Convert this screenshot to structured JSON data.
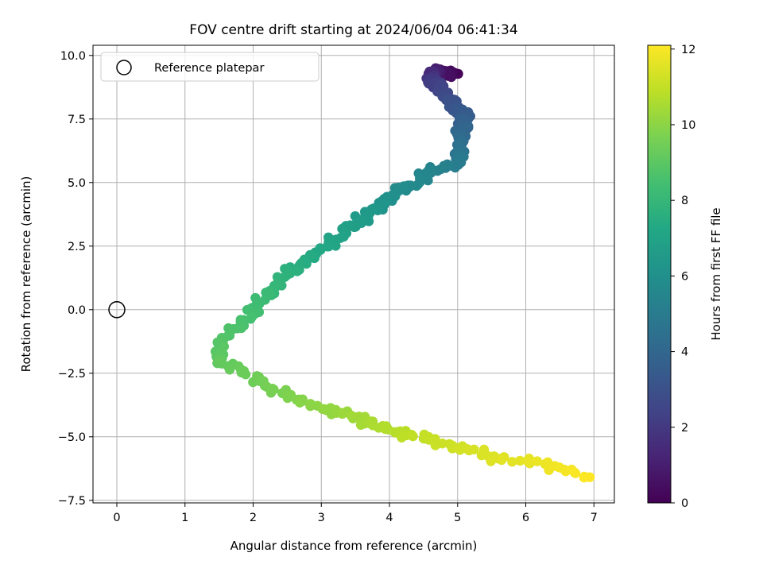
{
  "chart_data": {
    "type": "scatter",
    "title": "FOV centre drift starting at 2024/06/04 06:41:34",
    "xlabel": "Angular distance from reference (arcmin)",
    "ylabel": "Rotation from reference (arcmin)",
    "xlim": [
      -0.35,
      7.3
    ],
    "ylim": [
      -7.6,
      10.4
    ],
    "xticks": [
      0,
      1,
      2,
      3,
      4,
      5,
      6,
      7
    ],
    "xtick_labels": [
      "0",
      "1",
      "2",
      "3",
      "4",
      "5",
      "6",
      "7"
    ],
    "yticks": [
      -7.5,
      -5.0,
      -2.5,
      0.0,
      2.5,
      5.0,
      7.5,
      10.0
    ],
    "ytick_labels": [
      "−7.5",
      "−5.0",
      "−2.5",
      "0.0",
      "2.5",
      "5.0",
      "7.5",
      "10.0"
    ],
    "grid": true,
    "legend": {
      "position": "top-left",
      "entries": [
        "Reference platepar"
      ]
    },
    "reference_point": {
      "x": 0,
      "y": 0
    },
    "colorbar": {
      "label": "Hours from first FF file",
      "range": [
        0,
        12.1
      ],
      "ticks": [
        0,
        2,
        4,
        6,
        8,
        10,
        12
      ],
      "tick_labels": [
        "0",
        "2",
        "4",
        "6",
        "8",
        "10",
        "12"
      ],
      "colormap": "viridis"
    },
    "path_waypoints": [
      {
        "t": 0.0,
        "x": 4.95,
        "y": 9.25
      },
      {
        "t": 1.0,
        "x": 4.65,
        "y": 9.4
      },
      {
        "t": 2.0,
        "x": 4.6,
        "y": 9.0
      },
      {
        "t": 2.8,
        "x": 4.85,
        "y": 8.3
      },
      {
        "t": 3.5,
        "x": 5.1,
        "y": 7.6
      },
      {
        "t": 4.2,
        "x": 5.05,
        "y": 6.8
      },
      {
        "t": 5.0,
        "x": 5.0,
        "y": 5.8
      },
      {
        "t": 5.4,
        "x": 4.6,
        "y": 5.5
      },
      {
        "t": 6.0,
        "x": 4.0,
        "y": 4.4
      },
      {
        "t": 6.8,
        "x": 3.4,
        "y": 3.2
      },
      {
        "t": 7.5,
        "x": 2.7,
        "y": 1.8
      },
      {
        "t": 8.1,
        "x": 2.2,
        "y": 0.6
      },
      {
        "t": 8.5,
        "x": 1.9,
        "y": -0.3
      },
      {
        "t": 8.8,
        "x": 1.55,
        "y": -1.2
      },
      {
        "t": 9.1,
        "x": 1.5,
        "y": -2.0
      },
      {
        "t": 9.4,
        "x": 2.0,
        "y": -2.7
      },
      {
        "t": 9.8,
        "x": 2.6,
        "y": -3.5
      },
      {
        "t": 10.3,
        "x": 3.4,
        "y": -4.2
      },
      {
        "t": 10.9,
        "x": 4.3,
        "y": -4.9
      },
      {
        "t": 11.4,
        "x": 5.3,
        "y": -5.6
      },
      {
        "t": 11.8,
        "x": 6.3,
        "y": -6.1
      },
      {
        "t": 12.1,
        "x": 6.95,
        "y": -6.6
      }
    ],
    "n_points": 470
  }
}
